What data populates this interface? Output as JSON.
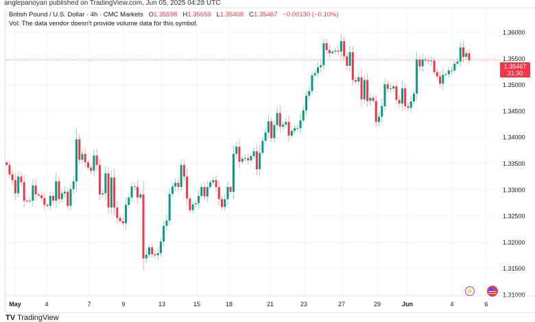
{
  "publisher_line": "anglepanoyan published on TradingView.com, Jun 05, 2025 04:28 UTC",
  "legend": {
    "symbol": "British Pound / U.S. Dollar · 4h · CMC Markets",
    "o_label": "O",
    "o": "1.35598",
    "h_label": "H",
    "h": "1.35659",
    "l_label": "L",
    "l": "1.35408",
    "c_label": "C",
    "c": "1.35467",
    "change": "−0.00130 (−0.10%)",
    "vol_note": "Vol: The data vendor doesn't provide volume data for this symbol."
  },
  "price_tag": {
    "price": "1.35467",
    "countdown": "31:30"
  },
  "icons": {
    "event_1": "lightning-icon",
    "event_2": "us-flag-icon"
  },
  "footer": {
    "brand": "TradingView"
  },
  "colors": {
    "up": "#089981",
    "down": "#f23645",
    "grid": "#f0f3fa"
  },
  "chart_data": {
    "type": "candlestick",
    "title": "British Pound / U.S. Dollar · 4h · CMC Markets",
    "ylim": [
      1.3075,
      1.3625
    ],
    "y_ticks": [
      "1.36000",
      "1.35500",
      "1.35000",
      "1.34500",
      "1.34000",
      "1.33500",
      "1.33000",
      "1.32500",
      "1.32000",
      "1.31500",
      "1.31000"
    ],
    "x_ticks": [
      "May",
      "4",
      "7",
      "9",
      "13",
      "15",
      "18",
      "21",
      "23",
      "27",
      "29",
      "Jun",
      "4",
      "6"
    ],
    "last_price": 1.35467,
    "first_open": 1.3352,
    "closes": [
      1.3347,
      1.3329,
      1.3318,
      1.3293,
      1.3325,
      1.3314,
      1.3279,
      1.3278,
      1.3279,
      1.3308,
      1.3291,
      1.3289,
      1.3284,
      1.3271,
      1.3269,
      1.3288,
      1.3279,
      1.3316,
      1.3282,
      1.3293,
      1.3296,
      1.3269,
      1.3301,
      1.3316,
      1.3396,
      1.3357,
      1.3368,
      1.3352,
      1.3342,
      1.3336,
      1.3365,
      1.3347,
      1.3291,
      1.3293,
      1.3331,
      1.3266,
      1.3323,
      1.3266,
      1.3246,
      1.324,
      1.3236,
      1.3271,
      1.3285,
      1.3306,
      1.3305,
      1.3285,
      1.3291,
      1.3169,
      1.3176,
      1.319,
      1.3177,
      1.3175,
      1.3179,
      1.3201,
      1.3231,
      1.3241,
      1.3292,
      1.3306,
      1.3313,
      1.3305,
      1.3347,
      1.3325,
      1.3283,
      1.3261,
      1.3272,
      1.3274,
      1.3288,
      1.3305,
      1.3287,
      1.3305,
      1.3314,
      1.3318,
      1.3305,
      1.3282,
      1.3267,
      1.3282,
      1.3305,
      1.3296,
      1.3368,
      1.3382,
      1.3353,
      1.3359,
      1.336,
      1.3356,
      1.3364,
      1.3373,
      1.3339,
      1.337,
      1.3393,
      1.3409,
      1.343,
      1.3398,
      1.3423,
      1.3446,
      1.342,
      1.3424,
      1.3429,
      1.3403,
      1.3412,
      1.3417,
      1.3417,
      1.3432,
      1.3451,
      1.3479,
      1.3488,
      1.3518,
      1.3522,
      1.3533,
      1.3537,
      1.3579,
      1.3566,
      1.356,
      1.3563,
      1.3565,
      1.3563,
      1.3583,
      1.3554,
      1.3536,
      1.3562,
      1.3509,
      1.3506,
      1.3514,
      1.3472,
      1.3509,
      1.3469,
      1.3475,
      1.3469,
      1.3429,
      1.3439,
      1.3459,
      1.3501,
      1.3492,
      1.3493,
      1.3497,
      1.3471,
      1.3464,
      1.3493,
      1.3459,
      1.3456,
      1.3468,
      1.3483,
      1.3548,
      1.3535,
      1.3548,
      1.3546,
      1.3545,
      1.3546,
      1.3524,
      1.3516,
      1.3502,
      1.3519,
      1.352,
      1.3527,
      1.3527,
      1.354,
      1.3544,
      1.3571,
      1.3553,
      1.356,
      1.35467
    ]
  }
}
